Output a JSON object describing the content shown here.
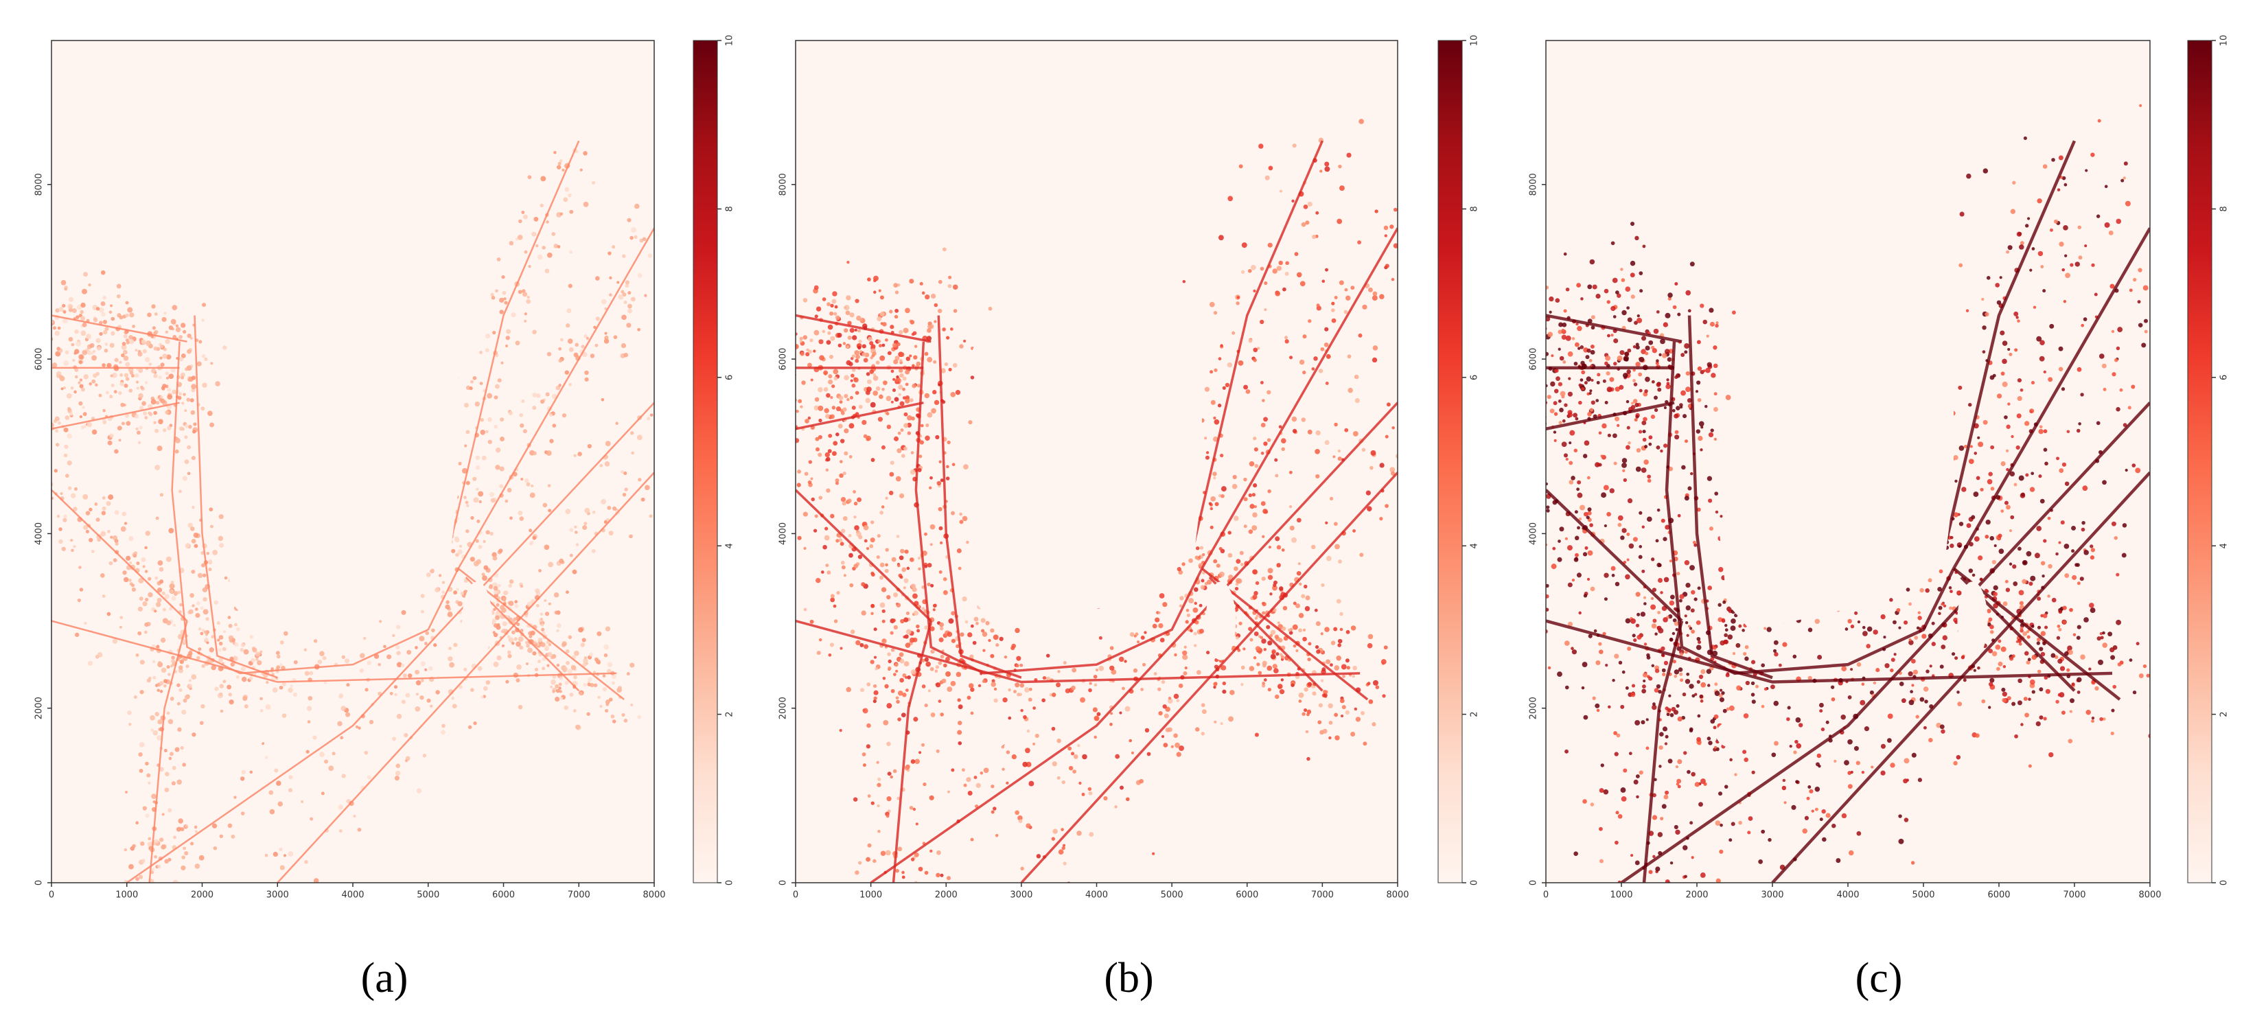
{
  "chart_data": [
    {
      "type": "heatmap",
      "caption": "(a)",
      "xlim": [
        0,
        8000
      ],
      "ylim": [
        0,
        9650
      ],
      "xticks": [
        0,
        1000,
        2000,
        3000,
        4000,
        5000,
        6000,
        7000,
        8000
      ],
      "yticks": [
        0,
        2000,
        4000,
        6000,
        8000
      ],
      "colorbar": {
        "lim": [
          0,
          10
        ],
        "ticks": [
          0,
          2,
          4,
          6,
          8,
          10
        ]
      },
      "colors": [
        "#fff5f0",
        "#fee0d2",
        "#fcbba1",
        "#fc9272",
        "#fb6a4a",
        "#ef3b2c",
        "#cb181d",
        "#a50f15",
        "#67000d"
      ]
    },
    {
      "type": "heatmap",
      "caption": "(b)",
      "xlim": [
        0,
        8000
      ],
      "ylim": [
        0,
        9650
      ],
      "xticks": [
        0,
        1000,
        2000,
        3000,
        4000,
        5000,
        6000,
        7000,
        8000
      ],
      "yticks": [
        0,
        2000,
        4000,
        6000,
        8000
      ],
      "colorbar": {
        "lim": [
          0,
          10
        ],
        "ticks": [
          0,
          2,
          4,
          6,
          8,
          10
        ]
      },
      "colors": [
        "#fff5f0",
        "#fee0d2",
        "#fcbba1",
        "#fc9272",
        "#fb6a4a",
        "#ef3b2c",
        "#cb181d",
        "#a50f15",
        "#67000d"
      ]
    },
    {
      "type": "heatmap",
      "caption": "(c)",
      "xlim": [
        0,
        8000
      ],
      "ylim": [
        0,
        9650
      ],
      "xticks": [
        0,
        1000,
        2000,
        3000,
        4000,
        5000,
        6000,
        7000,
        8000
      ],
      "yticks": [
        0,
        2000,
        4000,
        6000,
        8000
      ],
      "colorbar": {
        "lim": [
          0,
          10
        ],
        "ticks": [
          0,
          2,
          4,
          6,
          8,
          10
        ]
      },
      "colors": [
        "#fff5f0",
        "#fee0d2",
        "#fcbba1",
        "#fc9272",
        "#fb6a4a",
        "#ef3b2c",
        "#cb181d",
        "#a50f15",
        "#67000d"
      ]
    }
  ]
}
